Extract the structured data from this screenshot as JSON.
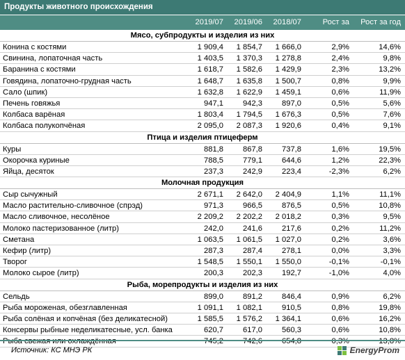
{
  "title": "Продукты животного происхождения",
  "columns": [
    "",
    "2019/07",
    "2019/06",
    "2018/07",
    "Рост за месяц",
    "Рост за год"
  ],
  "sections": [
    {
      "name": "Мясо, субпродукты и изделия из них",
      "rows": [
        [
          "Конина с костями",
          "1 909,4",
          "1 854,7",
          "1 666,0",
          "2,9%",
          "14,6%"
        ],
        [
          "Свинина, лопаточная часть",
          "1 403,5",
          "1 370,3",
          "1 278,8",
          "2,4%",
          "9,8%"
        ],
        [
          "Баранина с костями",
          "1 618,7",
          "1 582,6",
          "1 429,9",
          "2,3%",
          "13,2%"
        ],
        [
          "Говядина, лопаточно-грудная часть",
          "1 648,7",
          "1 635,8",
          "1 500,7",
          "0,8%",
          "9,9%"
        ],
        [
          "Сало (шпик)",
          "1 632,8",
          "1 622,9",
          "1 459,1",
          "0,6%",
          "11,9%"
        ],
        [
          "Печень говяжья",
          "947,1",
          "942,3",
          "897,0",
          "0,5%",
          "5,6%"
        ],
        [
          "Колбаса варёная",
          "1 803,4",
          "1 794,5",
          "1 676,3",
          "0,5%",
          "7,6%"
        ],
        [
          "Колбаса полукопчёная",
          "2 095,0",
          "2 087,3",
          "1 920,6",
          "0,4%",
          "9,1%"
        ]
      ]
    },
    {
      "name": "Птица и изделия птицеферм",
      "rows": [
        [
          "Куры",
          "881,8",
          "867,8",
          "737,8",
          "1,6%",
          "19,5%"
        ],
        [
          "Окорочка куриные",
          "788,5",
          "779,1",
          "644,6",
          "1,2%",
          "22,3%"
        ],
        [
          "Яйца, десяток",
          "237,3",
          "242,9",
          "223,4",
          "-2,3%",
          "6,2%"
        ]
      ]
    },
    {
      "name": "Молочная продукция",
      "rows": [
        [
          "Сыр сычужный",
          "2 671,1",
          "2 642,0",
          "2 404,9",
          "1,1%",
          "11,1%"
        ],
        [
          "Масло растительно-сливочное (спрэд)",
          "971,3",
          "966,5",
          "876,5",
          "0,5%",
          "10,8%"
        ],
        [
          "Масло сливочное, несолёное",
          "2 209,2",
          "2 202,2",
          "2 018,2",
          "0,3%",
          "9,5%"
        ],
        [
          "Молоко пастеризованное (литр)",
          "242,0",
          "241,6",
          "217,6",
          "0,2%",
          "11,2%"
        ],
        [
          "Сметана",
          "1 063,5",
          "1 061,5",
          "1 027,0",
          "0,2%",
          "3,6%"
        ],
        [
          "Кефир (литр)",
          "287,3",
          "287,4",
          "278,1",
          "0,0%",
          "3,3%"
        ],
        [
          "Творог",
          "1 548,5",
          "1 550,1",
          "1 550,0",
          "-0,1%",
          "-0,1%"
        ],
        [
          "Молоко сырое (литр)",
          "200,3",
          "202,3",
          "192,7",
          "-1,0%",
          "4,0%"
        ]
      ]
    },
    {
      "name": "Рыба, морепродукты и изделия из них",
      "rows": [
        [
          "Сельдь",
          "899,0",
          "891,2",
          "846,4",
          "0,9%",
          "6,2%"
        ],
        [
          "Рыба мороженая, обезглавленная",
          "1 091,1",
          "1 082,1",
          "910,5",
          "0,8%",
          "19,8%"
        ],
        [
          "Рыба солёная и копчёная (без деликатесной)",
          "1 585,5",
          "1 576,2",
          "1 364,1",
          "0,6%",
          "16,2%"
        ],
        [
          "Консервы рыбные неделикатесные, усл. банка",
          "620,7",
          "617,0",
          "560,3",
          "0,6%",
          "10,8%"
        ],
        [
          "Рыба свежая или охлаждённая",
          "745,2",
          "742,6",
          "654,8",
          "0,3%",
          "13,8%"
        ]
      ]
    }
  ],
  "footer": {
    "source_label": "Источник:",
    "source_value": "КС МНЭ РК",
    "logo_text": "EnergyProm"
  },
  "colors": {
    "title_bg": "#3d7a74",
    "header_bg": "#4f8d84",
    "logo_accent": "#7cc040"
  }
}
